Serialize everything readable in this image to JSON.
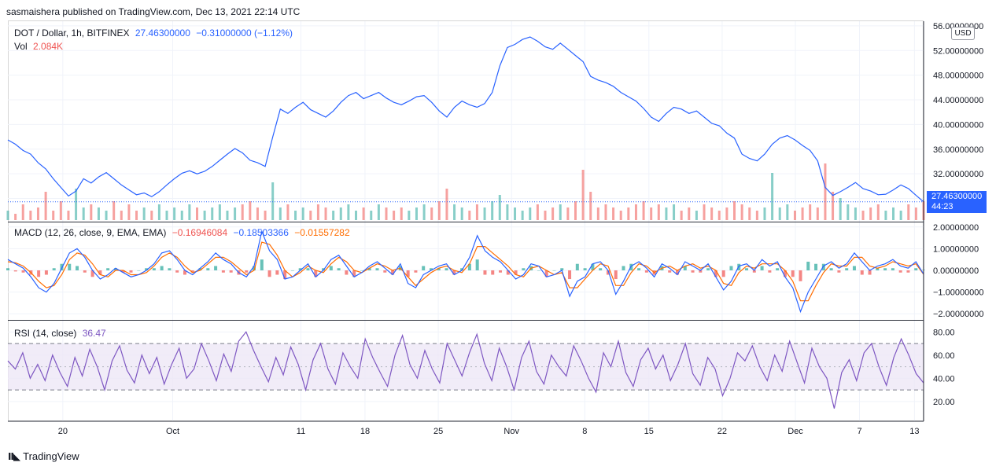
{
  "header": {
    "published": "sasmaishera published on TradingView.com, Dec 13, 2021 22:14 UTC"
  },
  "symbol": {
    "name": "DOT / Dollar, 1h, BITFINEX",
    "price": "27.46300000",
    "change": "−0.31000000 (−1.12%)",
    "vol_label": "Vol",
    "vol_value": "2.084K",
    "price_tag_value": "27.46300000",
    "price_tag_timer": "44:23",
    "currency": "USD"
  },
  "macd": {
    "label": "MACD (12, 26, close, 9, EMA, EMA)",
    "v1": "−0.16946084",
    "v2": "−0.18503366",
    "v3": "−0.01557282"
  },
  "rsi": {
    "label": "RSI (14, close)",
    "value": "36.47"
  },
  "footer": {
    "brand": "TradingView"
  },
  "colors": {
    "price": "#2962ff",
    "macd": "#2962ff",
    "signal": "#ff6d00",
    "hist_up": "#26a69a",
    "hist_down": "#ef5350",
    "rsi": "#7e57c2",
    "rsi_band": "#ede7f6",
    "vol_label": "#ef5350",
    "macd_v3": "#ff6d00"
  },
  "chart_data": {
    "type": "line",
    "price": {
      "y_ticks": [
        "56.00000000",
        "52.00000000",
        "48.00000000",
        "44.00000000",
        "40.00000000",
        "36.00000000",
        "32.00000000",
        "28.00000000"
      ],
      "ylim": [
        24.5,
        56.5
      ],
      "values": [
        37.5,
        36.8,
        35.8,
        35.2,
        33.8,
        32.8,
        31.2,
        29.8,
        28.4,
        29.2,
        31.2,
        30.5,
        31.5,
        32.2,
        31.2,
        30.2,
        29.4,
        28.6,
        28.9,
        28.3,
        29.1,
        30.2,
        31.2,
        32.1,
        32.5,
        32.0,
        32.4,
        33.2,
        34.2,
        35.2,
        36.1,
        35.4,
        34.2,
        33.8,
        33.2,
        38.0,
        42.5,
        41.8,
        42.8,
        43.6,
        42.4,
        41.8,
        41.2,
        42.2,
        43.6,
        44.7,
        45.2,
        44.2,
        44.7,
        45.2,
        44.3,
        43.6,
        43.2,
        43.8,
        44.5,
        44.7,
        43.6,
        42.2,
        41.2,
        42.8,
        43.8,
        43.2,
        42.8,
        43.4,
        45.2,
        49.5,
        52.5,
        53.0,
        53.8,
        54.2,
        53.5,
        52.6,
        52.2,
        53.2,
        52.2,
        51.2,
        50.2,
        47.8,
        47.2,
        46.8,
        46.2,
        45.2,
        44.5,
        43.8,
        42.6,
        41.2,
        40.5,
        41.8,
        42.8,
        42.5,
        41.8,
        42.2,
        41.2,
        40.2,
        39.8,
        38.6,
        37.8,
        35.2,
        34.5,
        34.1,
        35.2,
        36.8,
        37.8,
        38.2,
        37.5,
        36.6,
        35.8,
        34.1,
        29.8,
        28.5,
        29.1,
        29.8,
        30.6,
        29.6,
        29.2,
        28.6,
        28.7,
        29.4,
        30.2,
        29.6,
        28.5,
        27.46
      ]
    },
    "volume": {
      "values": [
        0.3,
        0.2,
        0.5,
        0.3,
        0.4,
        0.9,
        0.3,
        0.6,
        0.3,
        1.0,
        0.4,
        0.5,
        0.4,
        0.3,
        0.6,
        0.3,
        0.5,
        0.3,
        0.4,
        0.3,
        0.5,
        0.3,
        0.4,
        0.3,
        0.5,
        0.4,
        0.3,
        0.4,
        0.5,
        0.3,
        0.4,
        0.5,
        0.6,
        0.4,
        0.3,
        1.2,
        0.4,
        0.5,
        0.3,
        0.4,
        0.3,
        0.5,
        0.4,
        0.3,
        0.4,
        0.5,
        0.3,
        0.4,
        0.3,
        0.5,
        0.4,
        0.3,
        0.4,
        0.3,
        0.4,
        0.5,
        0.4,
        0.6,
        1.0,
        0.5,
        0.4,
        0.3,
        0.5,
        0.4,
        0.6,
        0.8,
        0.5,
        0.4,
        0.3,
        0.4,
        0.5,
        0.3,
        0.4,
        0.5,
        0.4,
        0.6,
        1.6,
        0.9,
        0.4,
        0.5,
        0.4,
        0.3,
        0.4,
        0.5,
        0.6,
        0.4,
        0.5,
        0.4,
        0.5,
        0.3,
        0.4,
        0.3,
        0.5,
        0.4,
        0.3,
        0.4,
        0.6,
        0.5,
        0.4,
        0.3,
        0.4,
        1.5,
        0.4,
        0.5,
        0.3,
        0.4,
        0.5,
        0.4,
        1.8,
        0.9,
        0.7,
        0.5,
        0.4,
        0.3,
        0.4,
        0.5,
        0.3,
        0.4,
        0.3,
        0.5,
        0.4,
        0.6
      ]
    },
    "macd": {
      "y_ticks": [
        "2.00000000",
        "1.00000000",
        "0.00000000",
        "−1.00000000",
        "−2.00000000"
      ],
      "ylim": [
        -2.1,
        2.1
      ],
      "macd": [
        0.5,
        0.3,
        0.1,
        -0.3,
        -0.8,
        -1.0,
        -0.6,
        0.1,
        0.8,
        1.0,
        0.6,
        0.0,
        -0.4,
        -0.2,
        0.1,
        -0.1,
        -0.3,
        -0.2,
        0.0,
        0.3,
        0.8,
        0.9,
        0.5,
        0.0,
        -0.2,
        0.1,
        0.4,
        0.8,
        0.5,
        0.3,
        -0.1,
        -0.3,
        0.2,
        1.8,
        0.9,
        0.5,
        -0.4,
        -0.3,
        0.0,
        0.3,
        -0.3,
        0.0,
        0.5,
        0.7,
        0.2,
        -0.3,
        -0.1,
        0.2,
        0.4,
        0.1,
        -0.2,
        0.3,
        -0.6,
        -0.8,
        -0.2,
        0.0,
        0.2,
        0.3,
        -0.2,
        0.0,
        0.6,
        1.6,
        0.9,
        0.6,
        0.4,
        0.0,
        -0.4,
        -0.2,
        0.3,
        0.2,
        -0.3,
        -0.2,
        0.0,
        -1.2,
        -0.5,
        -0.3,
        0.3,
        0.4,
        0.0,
        -1.1,
        -0.5,
        0.2,
        0.4,
        0.1,
        -0.3,
        0.3,
        0.1,
        -0.2,
        0.4,
        0.2,
        0.0,
        0.3,
        -0.3,
        -0.9,
        -0.5,
        0.2,
        0.3,
        0.0,
        0.5,
        0.2,
        0.4,
        -0.3,
        -0.8,
        -1.9,
        -1.0,
        -0.4,
        0.2,
        0.4,
        0.1,
        0.3,
        0.8,
        0.4,
        0.0,
        0.2,
        0.3,
        0.5,
        0.2,
        0.1,
        0.4,
        -0.17
      ],
      "signal": [
        0.4,
        0.35,
        0.2,
        -0.1,
        -0.5,
        -0.8,
        -0.7,
        -0.2,
        0.5,
        0.8,
        0.7,
        0.3,
        -0.2,
        -0.3,
        0.0,
        0.0,
        -0.2,
        -0.2,
        -0.1,
        0.2,
        0.6,
        0.8,
        0.6,
        0.2,
        -0.1,
        0.0,
        0.3,
        0.6,
        0.6,
        0.4,
        0.1,
        -0.2,
        0.0,
        1.3,
        1.2,
        0.7,
        0.0,
        -0.3,
        -0.1,
        0.2,
        0.0,
        -0.1,
        0.3,
        0.6,
        0.4,
        0.0,
        -0.1,
        0.1,
        0.3,
        0.2,
        0.0,
        0.1,
        -0.3,
        -0.7,
        -0.4,
        -0.1,
        0.1,
        0.2,
        0.0,
        -0.1,
        0.3,
        1.1,
        1.1,
        0.8,
        0.5,
        0.2,
        -0.2,
        -0.3,
        0.1,
        0.2,
        0.0,
        -0.2,
        -0.1,
        -0.8,
        -0.8,
        -0.4,
        0.0,
        0.3,
        0.2,
        -0.7,
        -0.7,
        -0.1,
        0.3,
        0.2,
        -0.1,
        0.1,
        0.2,
        0.0,
        0.2,
        0.3,
        0.1,
        0.2,
        0.0,
        -0.6,
        -0.7,
        -0.1,
        0.2,
        0.1,
        0.3,
        0.3,
        0.3,
        0.0,
        -0.5,
        -1.4,
        -1.4,
        -0.7,
        -0.1,
        0.3,
        0.2,
        0.2,
        0.6,
        0.6,
        0.2,
        0.1,
        0.2,
        0.4,
        0.3,
        0.2,
        0.3,
        -0.19
      ]
    },
    "rsi": {
      "y_ticks": [
        "80.00",
        "60.00",
        "40.00",
        "20.00"
      ],
      "ylim": [
        7,
        87
      ],
      "upper": 70,
      "middle": 50,
      "lower": 30,
      "values": [
        55,
        48,
        62,
        40,
        52,
        38,
        60,
        45,
        33,
        58,
        42,
        65,
        50,
        30,
        55,
        68,
        47,
        36,
        60,
        44,
        58,
        35,
        52,
        66,
        40,
        48,
        70,
        55,
        38,
        61,
        46,
        72,
        80,
        64,
        50,
        37,
        58,
        43,
        67,
        52,
        30,
        56,
        70,
        48,
        35,
        62,
        50,
        40,
        74,
        58,
        45,
        33,
        60,
        77,
        52,
        40,
        64,
        48,
        36,
        70,
        56,
        42,
        62,
        78,
        53,
        38,
        66,
        50,
        30,
        58,
        72,
        46,
        35,
        60,
        50,
        42,
        68,
        55,
        40,
        28,
        62,
        50,
        72,
        45,
        33,
        56,
        66,
        48,
        60,
        38,
        52,
        70,
        44,
        34,
        58,
        48,
        25,
        40,
        62,
        55,
        68,
        50,
        38,
        60,
        46,
        72,
        54,
        36,
        66,
        50,
        40,
        14,
        45,
        56,
        38,
        62,
        70,
        50,
        34,
        58,
        74,
        60,
        44,
        36
      ]
    },
    "x_ticks": [
      {
        "label": "20",
        "value": 3
      },
      {
        "label": "Oct",
        "value": 15
      },
      {
        "label": "11",
        "value": 29
      },
      {
        "label": "18",
        "value": 36
      },
      {
        "label": "25",
        "value": 44
      },
      {
        "label": "Nov",
        "value": 52
      },
      {
        "label": "8",
        "value": 60
      },
      {
        "label": "15",
        "value": 67
      },
      {
        "label": "22",
        "value": 75
      },
      {
        "label": "Dec",
        "value": 83
      },
      {
        "label": "7",
        "value": 90
      },
      {
        "label": "13",
        "value": 96
      }
    ],
    "x_range": [
      -3,
      97
    ]
  }
}
